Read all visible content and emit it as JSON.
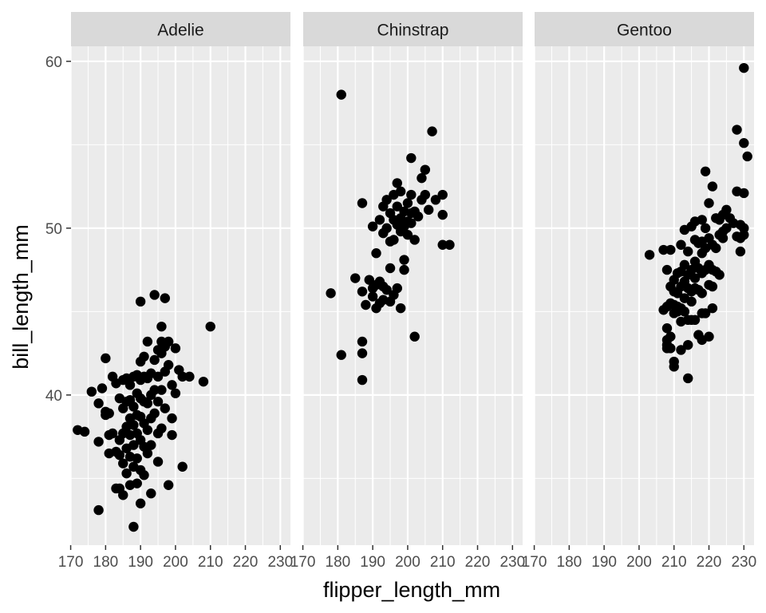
{
  "chart_data": {
    "type": "scatter",
    "facet_by": "species",
    "xlabel": "flipper_length_mm",
    "ylabel": "bill_length_mm",
    "xlim": [
      170.1,
      232.9
    ],
    "ylim": [
      31.0,
      60.9
    ],
    "x_ticks": [
      170,
      180,
      190,
      200,
      210,
      220,
      230
    ],
    "y_ticks": [
      40,
      50,
      60
    ],
    "grid": true,
    "legend": "none",
    "colors": {
      "panel_bg": "#ebebeb",
      "grid_major": "#ffffff",
      "strip_bg": "#d9d9d9",
      "point": "#000000",
      "tick_text": "#4d4d4d"
    },
    "panels": [
      {
        "name": "Adelie",
        "points": [
          [
            172,
            37.9
          ],
          [
            174,
            37.8
          ],
          [
            176,
            40.2
          ],
          [
            178,
            33.1
          ],
          [
            178,
            37.2
          ],
          [
            178,
            39.5
          ],
          [
            179,
            40.4
          ],
          [
            180,
            42.2
          ],
          [
            180,
            38.8
          ],
          [
            180,
            39.0
          ],
          [
            181,
            38.9
          ],
          [
            181,
            37.6
          ],
          [
            181,
            36.5
          ],
          [
            182,
            41.1
          ],
          [
            182,
            37.7
          ],
          [
            183,
            40.7
          ],
          [
            183,
            36.6
          ],
          [
            183,
            34.4
          ],
          [
            184,
            39.8
          ],
          [
            184,
            37.3
          ],
          [
            184,
            36.4
          ],
          [
            184,
            34.4
          ],
          [
            185,
            40.9
          ],
          [
            185,
            39.2
          ],
          [
            185,
            37.7
          ],
          [
            185,
            35.9
          ],
          [
            185,
            34.0
          ],
          [
            186,
            41.0
          ],
          [
            186,
            39.6
          ],
          [
            186,
            38.1
          ],
          [
            186,
            36.8
          ],
          [
            186,
            35.3
          ],
          [
            187,
            40.6
          ],
          [
            187,
            39.7
          ],
          [
            187,
            38.6
          ],
          [
            187,
            37.6
          ],
          [
            187,
            36.3
          ],
          [
            187,
            34.6
          ],
          [
            188,
            41.1
          ],
          [
            188,
            39.3
          ],
          [
            188,
            38.2
          ],
          [
            188,
            37.0
          ],
          [
            188,
            35.7
          ],
          [
            188,
            32.1
          ],
          [
            189,
            41.2
          ],
          [
            189,
            40.1
          ],
          [
            189,
            38.8
          ],
          [
            189,
            37.7
          ],
          [
            189,
            36.2
          ],
          [
            189,
            34.7
          ],
          [
            190,
            42.0
          ],
          [
            190,
            40.9
          ],
          [
            190,
            39.8
          ],
          [
            190,
            38.7
          ],
          [
            190,
            37.3
          ],
          [
            190,
            35.5
          ],
          [
            190,
            33.5
          ],
          [
            190,
            45.6
          ],
          [
            191,
            42.3
          ],
          [
            191,
            41.1
          ],
          [
            191,
            39.6
          ],
          [
            191,
            38.3
          ],
          [
            191,
            36.9
          ],
          [
            191,
            35.2
          ],
          [
            192,
            43.2
          ],
          [
            192,
            41.0
          ],
          [
            192,
            39.5
          ],
          [
            192,
            37.9
          ],
          [
            192,
            36.5
          ],
          [
            193,
            41.3
          ],
          [
            193,
            40.0
          ],
          [
            193,
            38.6
          ],
          [
            193,
            37.0
          ],
          [
            193,
            34.1
          ],
          [
            194,
            46.0
          ],
          [
            194,
            42.1
          ],
          [
            194,
            40.3
          ],
          [
            194,
            38.9
          ],
          [
            195,
            42.7
          ],
          [
            195,
            41.1
          ],
          [
            195,
            39.6
          ],
          [
            195,
            37.7
          ],
          [
            195,
            36.0
          ],
          [
            196,
            44.1
          ],
          [
            196,
            43.2
          ],
          [
            196,
            42.5
          ],
          [
            196,
            40.3
          ],
          [
            196,
            38.0
          ],
          [
            197,
            45.8
          ],
          [
            197,
            42.9
          ],
          [
            197,
            41.4
          ],
          [
            197,
            39.2
          ],
          [
            198,
            43.2
          ],
          [
            198,
            41.8
          ],
          [
            198,
            34.6
          ],
          [
            199,
            40.6
          ],
          [
            199,
            38.6
          ],
          [
            199,
            37.6
          ],
          [
            200,
            42.8
          ],
          [
            200,
            40.1
          ],
          [
            201,
            41.5
          ],
          [
            202,
            35.7
          ],
          [
            202,
            41.1
          ],
          [
            204,
            41.1
          ],
          [
            208,
            40.8
          ],
          [
            210,
            44.1
          ]
        ]
      },
      {
        "name": "Chinstrap",
        "points": [
          [
            178,
            46.1
          ],
          [
            181,
            58.0
          ],
          [
            181,
            42.4
          ],
          [
            185,
            47.0
          ],
          [
            187,
            51.5
          ],
          [
            187,
            46.2
          ],
          [
            187,
            43.2
          ],
          [
            187,
            42.5
          ],
          [
            187,
            40.9
          ],
          [
            188,
            45.4
          ],
          [
            189,
            46.9
          ],
          [
            190,
            50.1
          ],
          [
            190,
            46.4
          ],
          [
            190,
            45.9
          ],
          [
            191,
            48.5
          ],
          [
            191,
            46.6
          ],
          [
            191,
            45.2
          ],
          [
            192,
            50.5
          ],
          [
            192,
            46.8
          ],
          [
            192,
            45.5
          ],
          [
            193,
            51.3
          ],
          [
            193,
            49.7
          ],
          [
            193,
            46.5
          ],
          [
            193,
            45.7
          ],
          [
            194,
            51.7
          ],
          [
            194,
            50.0
          ],
          [
            194,
            46.3
          ],
          [
            195,
            50.9
          ],
          [
            195,
            49.2
          ],
          [
            195,
            47.6
          ],
          [
            195,
            45.6
          ],
          [
            196,
            52.0
          ],
          [
            196,
            50.5
          ],
          [
            196,
            49.3
          ],
          [
            196,
            46.0
          ],
          [
            197,
            52.7
          ],
          [
            197,
            51.3
          ],
          [
            197,
            50.2
          ],
          [
            197,
            46.4
          ],
          [
            198,
            52.2
          ],
          [
            198,
            50.6
          ],
          [
            198,
            49.8
          ],
          [
            198,
            45.2
          ],
          [
            199,
            51.0
          ],
          [
            199,
            50.1
          ],
          [
            199,
            48.1
          ],
          [
            199,
            47.5
          ],
          [
            200,
            51.5
          ],
          [
            200,
            50.4
          ],
          [
            200,
            49.6
          ],
          [
            201,
            54.2
          ],
          [
            201,
            52.0
          ],
          [
            201,
            50.9
          ],
          [
            201,
            50.3
          ],
          [
            202,
            51.0
          ],
          [
            202,
            49.3
          ],
          [
            202,
            43.5
          ],
          [
            203,
            50.7
          ],
          [
            204,
            53.0
          ],
          [
            204,
            51.7
          ],
          [
            205,
            53.5
          ],
          [
            205,
            52.0
          ],
          [
            206,
            51.1
          ],
          [
            207,
            55.8
          ],
          [
            208,
            51.7
          ],
          [
            210,
            52.0
          ],
          [
            210,
            50.8
          ],
          [
            210,
            49.0
          ],
          [
            212,
            49.0
          ]
        ]
      },
      {
        "name": "Gentoo",
        "points": [
          [
            203,
            48.4
          ],
          [
            207,
            48.7
          ],
          [
            207,
            45.1
          ],
          [
            208,
            47.5
          ],
          [
            208,
            44.0
          ],
          [
            208,
            43.3
          ],
          [
            208,
            42.8
          ],
          [
            208,
            43.0
          ],
          [
            208,
            45.3
          ],
          [
            209,
            48.7
          ],
          [
            209,
            46.5
          ],
          [
            209,
            45.5
          ],
          [
            209,
            43.5
          ],
          [
            209,
            42.8
          ],
          [
            210,
            46.9
          ],
          [
            210,
            46.2
          ],
          [
            210,
            45.4
          ],
          [
            210,
            44.9
          ],
          [
            210,
            42.0
          ],
          [
            210,
            41.7
          ],
          [
            211,
            47.3
          ],
          [
            211,
            46.1
          ],
          [
            211,
            45.3
          ],
          [
            211,
            45.0
          ],
          [
            212,
            49.0
          ],
          [
            212,
            47.4
          ],
          [
            212,
            46.5
          ],
          [
            212,
            45.2
          ],
          [
            212,
            44.4
          ],
          [
            212,
            42.7
          ],
          [
            213,
            49.9
          ],
          [
            213,
            47.8
          ],
          [
            213,
            46.8
          ],
          [
            213,
            45.8
          ],
          [
            213,
            45.0
          ],
          [
            214,
            48.6
          ],
          [
            214,
            47.2
          ],
          [
            214,
            46.4
          ],
          [
            214,
            44.5
          ],
          [
            214,
            43.0
          ],
          [
            214,
            41.0
          ],
          [
            215,
            50.1
          ],
          [
            215,
            47.5
          ],
          [
            215,
            46.2
          ],
          [
            215,
            45.6
          ],
          [
            215,
            44.5
          ],
          [
            216,
            50.4
          ],
          [
            216,
            49.3
          ],
          [
            216,
            48.0
          ],
          [
            216,
            47.0
          ],
          [
            216,
            46.4
          ],
          [
            216,
            44.5
          ],
          [
            217,
            49.1
          ],
          [
            217,
            47.6
          ],
          [
            217,
            46.3
          ],
          [
            217,
            43.6
          ],
          [
            218,
            50.5
          ],
          [
            218,
            49.2
          ],
          [
            218,
            48.5
          ],
          [
            218,
            47.3
          ],
          [
            218,
            46.1
          ],
          [
            218,
            44.9
          ],
          [
            218,
            43.3
          ],
          [
            219,
            53.4
          ],
          [
            219,
            50.0
          ],
          [
            219,
            48.8
          ],
          [
            219,
            47.5
          ],
          [
            219,
            44.9
          ],
          [
            220,
            51.5
          ],
          [
            220,
            49.4
          ],
          [
            220,
            47.8
          ],
          [
            220,
            46.6
          ],
          [
            220,
            43.5
          ],
          [
            221,
            52.5
          ],
          [
            221,
            49.0
          ],
          [
            221,
            47.5
          ],
          [
            221,
            46.5
          ],
          [
            221,
            45.2
          ],
          [
            222,
            50.6
          ],
          [
            222,
            48.8
          ],
          [
            222,
            47.4
          ],
          [
            223,
            50.5
          ],
          [
            223,
            49.6
          ],
          [
            223,
            47.2
          ],
          [
            224,
            50.8
          ],
          [
            224,
            49.8
          ],
          [
            224,
            49.4
          ],
          [
            225,
            51.1
          ],
          [
            225,
            50.0
          ],
          [
            226,
            50.6
          ],
          [
            227,
            50.3
          ],
          [
            228,
            55.9
          ],
          [
            228,
            52.2
          ],
          [
            228,
            49.5
          ],
          [
            229,
            50.2
          ],
          [
            229,
            49.4
          ],
          [
            229,
            48.6
          ],
          [
            230,
            59.6
          ],
          [
            230,
            55.1
          ],
          [
            230,
            52.1
          ],
          [
            230,
            50.0
          ],
          [
            230,
            49.6
          ],
          [
            231,
            54.3
          ]
        ]
      }
    ]
  }
}
